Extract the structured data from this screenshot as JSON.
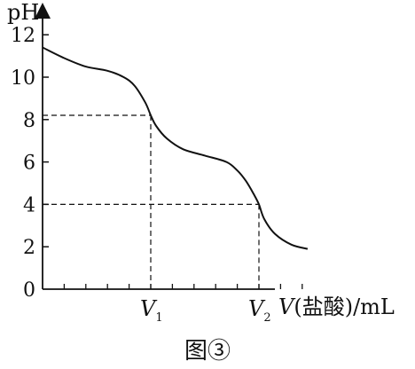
{
  "chart_data": {
    "type": "line",
    "ylabel": "pH",
    "xlabel_var": "V",
    "xlabel_rest": "(盐酸)/mL",
    "y_ticks": [
      "0",
      "2",
      "4",
      "6",
      "8",
      "10",
      "12"
    ],
    "ylim": [
      0,
      12.5
    ],
    "x_markers": [
      {
        "main": "V",
        "sub": "1",
        "ph": 8.2,
        "x": 1.0
      },
      {
        "main": "V",
        "sub": "2",
        "ph": 4.0,
        "x": 2.0
      }
    ],
    "xlim": [
      0,
      2.6
    ],
    "series": [
      {
        "x": [
          0.0,
          0.2,
          0.4,
          0.6,
          0.75,
          0.85,
          0.95,
          1.0,
          1.05,
          1.15,
          1.3,
          1.5,
          1.7,
          1.8,
          1.88,
          1.95,
          2.0,
          2.05,
          2.15,
          2.3,
          2.45
        ],
        "y": [
          11.4,
          10.9,
          10.5,
          10.3,
          10.0,
          9.6,
          8.8,
          8.2,
          7.7,
          7.1,
          6.6,
          6.3,
          6.0,
          5.6,
          5.1,
          4.5,
          4.0,
          3.3,
          2.6,
          2.1,
          1.9
        ]
      }
    ],
    "caption": "图③"
  }
}
